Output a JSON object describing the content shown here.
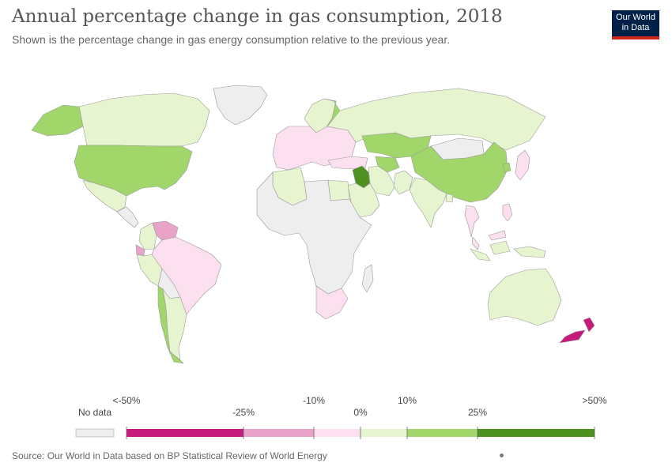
{
  "header": {
    "title": "Annual percentage change in gas consumption, 2018",
    "subtitle": "Shown is the percentage change in gas energy consumption relative to the previous year."
  },
  "logo": {
    "line1": "Our World",
    "line2": "in Data"
  },
  "footer": {
    "source": "Source: Our World in Data based on BP Statistical Review of World Energy"
  },
  "legend": {
    "no_data_label": "No data",
    "tick_labels": [
      "<-50%",
      "-25%",
      "-10%",
      "0%",
      "10%",
      "25%",
      ">50%"
    ],
    "colors": {
      "no_data": "#eeeeee",
      "bin_neg50_neg25": "#c51b7d",
      "bin_neg25_neg10": "#e9a3c9",
      "bin_neg10_0": "#fde0ef",
      "bin_0_10": "#e6f5d0",
      "bin_10_25": "#a1d76a",
      "bin_25_50": "#4d9221"
    }
  },
  "regions": [
    {
      "name": "Canada",
      "bin": "bin_0_10"
    },
    {
      "name": "United States",
      "bin": "bin_10_25"
    },
    {
      "name": "Alaska",
      "bin": "bin_10_25"
    },
    {
      "name": "Greenland",
      "bin": "no_data"
    },
    {
      "name": "Mexico",
      "bin": "bin_0_10"
    },
    {
      "name": "Central America",
      "bin": "no_data"
    },
    {
      "name": "Colombia",
      "bin": "bin_0_10"
    },
    {
      "name": "Venezuela",
      "bin": "bin_neg25_neg10"
    },
    {
      "name": "Ecuador",
      "bin": "bin_neg25_neg10"
    },
    {
      "name": "Peru",
      "bin": "bin_0_10"
    },
    {
      "name": "Brazil",
      "bin": "bin_neg10_0"
    },
    {
      "name": "Bolivia",
      "bin": "no_data"
    },
    {
      "name": "Chile",
      "bin": "bin_10_25"
    },
    {
      "name": "Argentina",
      "bin": "bin_0_10"
    },
    {
      "name": "Europe",
      "bin": "bin_neg10_0"
    },
    {
      "name": "Scandinavia",
      "bin": "bin_0_10"
    },
    {
      "name": "Finland",
      "bin": "bin_10_25"
    },
    {
      "name": "Russia",
      "bin": "bin_0_10"
    },
    {
      "name": "Kazakhstan",
      "bin": "bin_10_25"
    },
    {
      "name": "Uzbekistan",
      "bin": "bin_10_25"
    },
    {
      "name": "Mongolia",
      "bin": "no_data"
    },
    {
      "name": "China",
      "bin": "bin_10_25"
    },
    {
      "name": "South Korea",
      "bin": "bin_10_25"
    },
    {
      "name": "Japan",
      "bin": "bin_neg10_0"
    },
    {
      "name": "Turkey",
      "bin": "bin_neg10_0"
    },
    {
      "name": "Iraq",
      "bin": "bin_25_50"
    },
    {
      "name": "Iran",
      "bin": "bin_0_10"
    },
    {
      "name": "Saudi Arabia",
      "bin": "bin_0_10"
    },
    {
      "name": "Pakistan",
      "bin": "bin_0_10"
    },
    {
      "name": "India",
      "bin": "bin_0_10"
    },
    {
      "name": "Bangladesh",
      "bin": "bin_0_10"
    },
    {
      "name": "Thailand",
      "bin": "bin_neg10_0"
    },
    {
      "name": "Malaysia",
      "bin": "bin_neg10_0"
    },
    {
      "name": "Indonesia",
      "bin": "bin_0_10"
    },
    {
      "name": "Philippines",
      "bin": "bin_neg10_0"
    },
    {
      "name": "Algeria",
      "bin": "bin_0_10"
    },
    {
      "name": "Egypt",
      "bin": "bin_0_10"
    },
    {
      "name": "Rest of Africa",
      "bin": "no_data"
    },
    {
      "name": "South Africa",
      "bin": "bin_neg10_0"
    },
    {
      "name": "Australia",
      "bin": "bin_0_10"
    },
    {
      "name": "New Zealand",
      "bin": "bin_neg50_neg25"
    }
  ]
}
